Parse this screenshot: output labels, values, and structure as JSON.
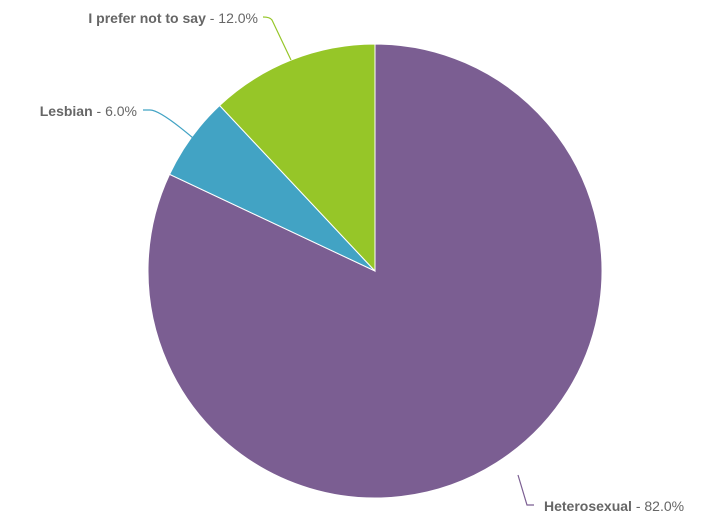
{
  "chart_data": {
    "type": "pie",
    "title": "",
    "slices": [
      {
        "label": "Heterosexual",
        "value": 82.0,
        "display": "82.0%",
        "color": "#7b5e92"
      },
      {
        "label": "Lesbian",
        "value": 6.0,
        "display": "6.0%",
        "color": "#42a3c4"
      },
      {
        "label": "I prefer not to say",
        "value": 12.0,
        "display": "12.0%",
        "color": "#96c628"
      }
    ],
    "start_angle_deg": 0,
    "direction": "clockwise",
    "legend": "none",
    "label_style": "leader-lines"
  }
}
